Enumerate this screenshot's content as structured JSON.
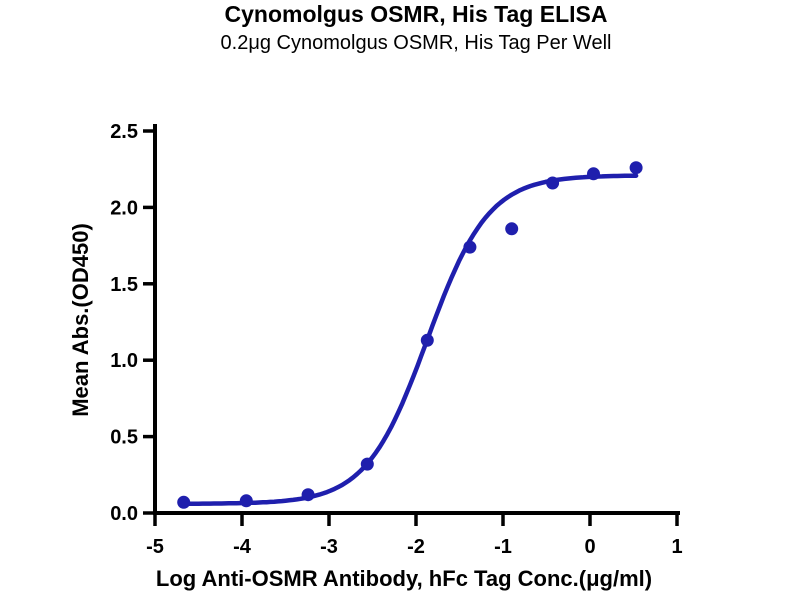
{
  "header": {
    "title": "Cynomolgus OSMR, His Tag ELISA",
    "subtitle": "0.2μg Cynomolgus OSMR, His Tag Per Well"
  },
  "chart_data": {
    "type": "scatter",
    "title": "Cynomolgus OSMR, His Tag ELISA",
    "subtitle": "0.2μg Cynomolgus OSMR, His Tag Per Well",
    "xlabel": "Log Anti-OSMR Antibody, hFc Tag Conc.(μg/ml)",
    "ylabel": "Mean Abs.(OD450)",
    "xlim": [
      -5,
      1
    ],
    "ylim": [
      0,
      2.5
    ],
    "x_ticks": [
      "-5",
      "-4",
      "-3",
      "-2",
      "-1",
      "0",
      "1"
    ],
    "y_ticks": [
      "0.0",
      "0.5",
      "1.0",
      "1.5",
      "2.0",
      "2.5"
    ],
    "grid": false,
    "legend": "none",
    "series": [
      {
        "name": "Anti-OSMR Antibody, hFc Tag",
        "marker": "circle",
        "color": "#1f1fad",
        "points": [
          {
            "x": -4.67,
            "y": 0.07
          },
          {
            "x": -3.95,
            "y": 0.08
          },
          {
            "x": -3.24,
            "y": 0.12
          },
          {
            "x": -2.56,
            "y": 0.32
          },
          {
            "x": -1.87,
            "y": 1.13
          },
          {
            "x": -1.38,
            "y": 1.74
          },
          {
            "x": -0.9,
            "y": 1.86
          },
          {
            "x": -0.43,
            "y": 2.16
          },
          {
            "x": 0.04,
            "y": 2.22
          },
          {
            "x": 0.53,
            "y": 2.26
          }
        ]
      }
    ],
    "fit_curve": {
      "model": "4PL sigmoid",
      "bottom": 0.06,
      "top": 2.21,
      "logEC50": -1.87,
      "hillslope": 1.24,
      "x_start": -4.67,
      "x_end": 0.53,
      "color": "#1f1fad"
    },
    "colors": {
      "series": "#1f1fad",
      "axis": "#000000",
      "text": "#000000",
      "background": "#ffffff"
    }
  }
}
